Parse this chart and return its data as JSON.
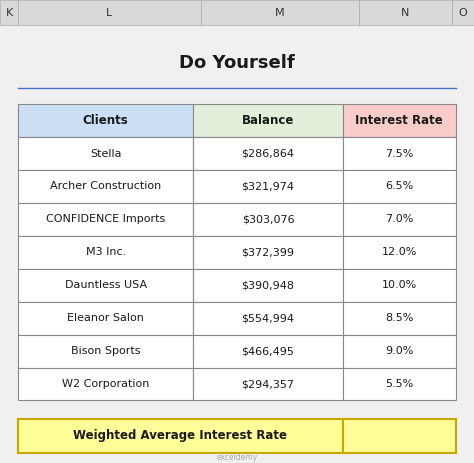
{
  "title": "Do Yourself",
  "headers": [
    "Clients",
    "Balance",
    "Interest Rate"
  ],
  "rows": [
    [
      "Stella",
      "$286,864",
      "7.5%"
    ],
    [
      "Archer Construction",
      "$321,974",
      "6.5%"
    ],
    [
      "CONFIDENCE Imports",
      "$303,076",
      "7.0%"
    ],
    [
      "M3 Inc.",
      "$372,399",
      "12.0%"
    ],
    [
      "Dauntless USA",
      "$390,948",
      "10.0%"
    ],
    [
      "Eleanor Salon",
      "$554,994",
      "8.5%"
    ],
    [
      "Bison Sports",
      "$466,495",
      "9.0%"
    ],
    [
      "W2 Corporation",
      "$294,357",
      "5.5%"
    ]
  ],
  "footer_label": "Weighted Average Interest Rate",
  "footer_value": "",
  "col_header_colors": [
    "#cce0f5",
    "#e2efda",
    "#f9cccc"
  ],
  "footer_bg": "#ffff99",
  "excel_header_bg": "#d9d9d9",
  "excel_col_letters": [
    "K",
    "L",
    "M",
    "N",
    "O"
  ],
  "title_line_color": "#4472c4",
  "fig_bg": "#f0f0f0",
  "table_border_color": "#888888",
  "footer_border_color": "#c8a800"
}
